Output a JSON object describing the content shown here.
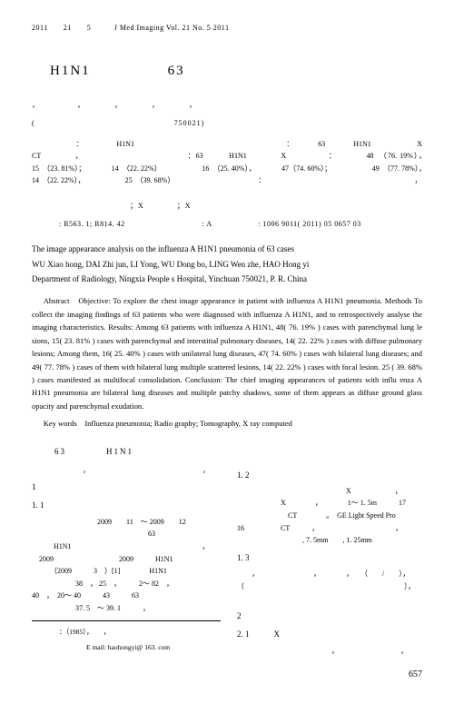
{
  "header": "2011　　21　　5　　　J Med Imaging Vol. 21 No. 5 2011",
  "title_main": "H1N1　　　　　63",
  "cn_meta1": "，　　　　　，　　　　，　　　　，　　　　，",
  "cn_meta2": "(　　　　　　　　　　　　　　　　　750021)",
  "cn_abstract": "　　　　　：　　　　H1N1　　　　　　　　　　　　　　　　　：　　　63　　　H1N1　　　　　X　　　CT　　　　，　　　　　　　　　　　　　：63　　　H1N1　　　　X　　　　　：　　　　48　（76. 19%），　　　　　　　　15　（23. 81%）；　　　　14　（22. 22%）　　　　　　16　（25. 40%），　　　　47（74. 60%）；　　　　　　49　（77. 78%），　　　　14　（22. 22%），　　　　　　25　（39. 68%）　　　　　　　　　　　　：　　　　　　　　　　　　　　　　　　　　　，　　　　　　　　　　　　　　　　　　　　　",
  "cn_kw": "　　　　　　　　　　　　；X　　　　；X　　　　　　　",
  "ids": ": R563. 1; R814. 42　　　　　　　　　　: A　　　　　　: 1006 9011( 2011) 05 0657 03",
  "en_title": "The image appearance analysis on the influenza A H1N1 pneumonia of 63 cases",
  "en_authors": "WU Xiao hong,  DAI Zhi jun,  LI Yong,  WU Dong bo,  LING Wen zhe,  HAO Hong yi",
  "en_dept": "Department of Radiology, Ningxia People s Hospital, Yinchuan 750021, P. R. China",
  "en_abstract": "Abstract　Objective: To explore the chest image appearance in patient with influenza A H1N1 pneumonia. Methods To collect the imaging findings of 63 patients who were diagnosed with influenza A H1N1, and to retrospectively analyse the imaging characteristics. Results: Among 63 patients with influenza A H1N1, 48( 76. 19% ) cases with parenchymal lung le sions, 15( 23. 81% ) cases with parenchymal and interstitial pulmonary diseases, 14( 22. 22% ) cases with diffuse pulmonary lesions; Among them, 16( 25. 40% ) cases with unilateral lung diseases, 47( 74. 60% ) cases with bilateral lung diseases; and 49( 77. 78% ) cases of them with bilateral lung multiple scattered lesions, 14( 22. 22% ) cases with focal lesion. 25 ( 39. 68% ) cases manifested as multifocal consolidation. Conclusion: The chief imaging appearances of patients with influ enza A H1N1 pneumonia are bilateral lung diseases and multiple patchy shadows, some of them appears as diffuse ground glass opacity and parenchymal exudation.",
  "en_kw": "Key words　Influenza pneumonia; Radio graphy;  Tomography, X ray computed",
  "body_title": "63　　　　H1N1",
  "col_left": {
    "s1": "1",
    "s11": "1. 1",
    "p1": "　　　　　　　　　2009　　11　～ 2009　　12",
    "p2": "　　　　　　　　　　　　　　　　63",
    "p3": "　　　H1N1　　　　　　　　　　　　　　　　　　，",
    "p4": "　2009　　　　　　　　　2009　　　H1N1",
    "p5": "　　　（2009　　　3　）[1]　　　　H1N1",
    "p6": "　　　　　　38　， 25　，　　　2～ 82　，",
    "p7": "40　，　20～ 40　　　43　　　63",
    "p8": "　　　　　　37. 5　～ 39. 1　　　，",
    "f1": "　　　　：（1985），　　，　　　　　　　　",
    "f2": "　　　　　　　　E mail: haohongyi@ 163. com"
  },
  "col_right": {
    "p1": "　　　　　　　，　　　　　　　　　　　　　　　　，　　",
    "s12": "1. 2",
    "p2": "　　　　　　　　　　　　　　　X　　　　　　，",
    "p3": "　　　　　　X　　　　，　　　　1～ 1. 5m　　　17",
    "p4": "　　　　　　　CT　　　　。　GE Light Speed Pro",
    "p5": "16　　　　　CT　　　，　　　　　　　　　　　，",
    "p6": "　　　　　　　　　, 7. 5mm　　, 1. 25mm",
    "s13": "1. 3",
    "p7": "　　，　　　　　　　　，　　　　，　　（　　/　　），",
    "p8": "（　　　　　　　　　　　　　　　　　　　　　　），　　",
    "p9": "　　　　　　　　　　　　　　　　　　　　　　　　",
    "s2": "2",
    "s21": "2. 1　　　X",
    "p10": "　　　　　　　　　　　　　，　　　　　　　　　，"
  },
  "page_num": "657"
}
